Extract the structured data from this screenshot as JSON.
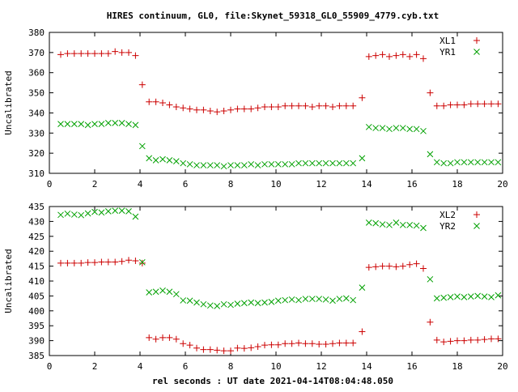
{
  "title": "HIRES continuum, GL0, file:Skynet_59318_GL0_55909_4779.cyb.txt",
  "xlabel": "rel seconds : UT date 2021-04-14T08:04:48.050",
  "chart_data": [
    {
      "type": "scatter",
      "ylabel": "Uncalibrated",
      "xlim": [
        0,
        20
      ],
      "ylim": [
        310,
        380
      ],
      "xticks": [
        "0",
        "2",
        "4",
        "6",
        "8",
        "10",
        "12",
        "14",
        "16",
        "18",
        "20"
      ],
      "yticks": [
        "310",
        "320",
        "330",
        "340",
        "350",
        "360",
        "370",
        "380"
      ],
      "legend_position": "top-right",
      "grid": false,
      "series": [
        {
          "name": "XL1",
          "marker": "+",
          "color": "#cc0000",
          "x": [
            0.5,
            0.8,
            1.1,
            1.4,
            1.7,
            2.0,
            2.3,
            2.6,
            2.9,
            3.2,
            3.5,
            3.8,
            4.1,
            4.4,
            4.7,
            5.0,
            5.3,
            5.6,
            5.9,
            6.2,
            6.5,
            6.8,
            7.1,
            7.4,
            7.7,
            8.0,
            8.3,
            8.6,
            8.9,
            9.2,
            9.5,
            9.8,
            10.1,
            10.4,
            10.7,
            11.0,
            11.3,
            11.6,
            11.9,
            12.2,
            12.5,
            12.8,
            13.1,
            13.4,
            13.8,
            14.1,
            14.4,
            14.7,
            15.0,
            15.3,
            15.6,
            15.9,
            16.2,
            16.5,
            16.8,
            17.1,
            17.4,
            17.7,
            18.0,
            18.3,
            18.6,
            18.9,
            19.2,
            19.5,
            19.8
          ],
          "y": [
            369,
            369.5,
            369.5,
            369.5,
            369.5,
            369.5,
            369.5,
            369.5,
            370.5,
            370,
            370,
            368.5,
            354,
            345.5,
            345.5,
            345,
            344,
            343,
            342.5,
            342,
            341.5,
            341.5,
            341,
            340.5,
            341,
            341.5,
            342,
            342,
            342,
            342.5,
            343,
            343,
            343,
            343.5,
            343.5,
            343.5,
            343.5,
            343,
            343.5,
            343.5,
            343,
            343.5,
            343.5,
            343.5,
            347.5,
            368,
            368.5,
            369,
            368,
            368.5,
            369,
            368,
            369,
            367,
            350,
            343.5,
            343.5,
            344,
            344,
            344,
            344.5,
            344.5,
            344.5,
            344.5,
            344.5
          ]
        },
        {
          "name": "YR1",
          "marker": "x",
          "color": "#00a000",
          "x": [
            0.5,
            0.8,
            1.1,
            1.4,
            1.7,
            2.0,
            2.3,
            2.6,
            2.9,
            3.2,
            3.5,
            3.8,
            4.1,
            4.4,
            4.7,
            5.0,
            5.3,
            5.6,
            5.9,
            6.2,
            6.5,
            6.8,
            7.1,
            7.4,
            7.7,
            8.0,
            8.3,
            8.6,
            8.9,
            9.2,
            9.5,
            9.8,
            10.1,
            10.4,
            10.7,
            11.0,
            11.3,
            11.6,
            11.9,
            12.2,
            12.5,
            12.8,
            13.1,
            13.4,
            13.8,
            14.1,
            14.4,
            14.7,
            15.0,
            15.3,
            15.6,
            15.9,
            16.2,
            16.5,
            16.8,
            17.1,
            17.4,
            17.7,
            18.0,
            18.3,
            18.6,
            18.9,
            19.2,
            19.5,
            19.8
          ],
          "y": [
            334.5,
            334.5,
            334.5,
            334.5,
            334,
            334.5,
            334.5,
            335,
            335,
            335,
            334.5,
            334,
            323.5,
            317.5,
            316.5,
            317,
            316.5,
            316,
            315,
            314.5,
            314,
            314,
            314,
            314,
            313.5,
            314,
            314,
            314,
            314.5,
            314,
            314.5,
            314.5,
            314.5,
            314.5,
            314.5,
            315,
            315,
            315,
            315,
            315,
            315,
            315,
            315,
            315,
            317.5,
            333,
            332.5,
            332.5,
            332,
            332.5,
            332.5,
            332,
            332,
            331,
            319.5,
            315.5,
            315,
            315,
            315.5,
            315.5,
            315.5,
            315.5,
            315.5,
            315.5,
            315.5
          ]
        }
      ]
    },
    {
      "type": "scatter",
      "ylabel": "Uncalibrated",
      "xlim": [
        0,
        20
      ],
      "ylim": [
        385,
        435
      ],
      "xticks": [
        "0",
        "2",
        "4",
        "6",
        "8",
        "10",
        "12",
        "14",
        "16",
        "18",
        "20"
      ],
      "yticks": [
        "385",
        "390",
        "395",
        "400",
        "405",
        "410",
        "415",
        "420",
        "425",
        "430",
        "435"
      ],
      "legend_position": "top-right",
      "grid": false,
      "series": [
        {
          "name": "XL2",
          "marker": "+",
          "color": "#cc0000",
          "x": [
            0.5,
            0.8,
            1.1,
            1.4,
            1.7,
            2.0,
            2.3,
            2.6,
            2.9,
            3.2,
            3.5,
            3.8,
            4.1,
            4.4,
            4.7,
            5.0,
            5.3,
            5.6,
            5.9,
            6.2,
            6.5,
            6.8,
            7.1,
            7.4,
            7.7,
            8.0,
            8.3,
            8.6,
            8.9,
            9.2,
            9.5,
            9.8,
            10.1,
            10.4,
            10.7,
            11.0,
            11.3,
            11.6,
            11.9,
            12.2,
            12.5,
            12.8,
            13.1,
            13.4,
            13.8,
            14.1,
            14.4,
            14.7,
            15.0,
            15.3,
            15.6,
            15.9,
            16.2,
            16.5,
            16.8,
            17.1,
            17.4,
            17.7,
            18.0,
            18.3,
            18.6,
            18.9,
            19.2,
            19.5,
            19.8
          ],
          "y": [
            416,
            416,
            416,
            416,
            416.2,
            416.2,
            416.4,
            416.4,
            416.4,
            416.6,
            417,
            416.8,
            416,
            391,
            390.5,
            391,
            391,
            390.5,
            389,
            388.5,
            387.5,
            387,
            387,
            386.8,
            386.6,
            386.6,
            387.5,
            387.4,
            387.6,
            388,
            388.5,
            388.6,
            388.6,
            389,
            389,
            389.2,
            389,
            389,
            388.8,
            388.8,
            389,
            389.2,
            389.2,
            389.2,
            393,
            414.6,
            414.8,
            415,
            415,
            414.8,
            415,
            415.5,
            415.8,
            414.2,
            396.2,
            390.2,
            389.6,
            389.8,
            390,
            390,
            390.2,
            390.2,
            390.4,
            390.6,
            390.6
          ]
        },
        {
          "name": "YR2",
          "marker": "x",
          "color": "#00a000",
          "x": [
            0.5,
            0.8,
            1.1,
            1.4,
            1.7,
            2.0,
            2.3,
            2.6,
            2.9,
            3.2,
            3.5,
            3.8,
            4.1,
            4.4,
            4.7,
            5.0,
            5.3,
            5.6,
            5.9,
            6.2,
            6.5,
            6.8,
            7.1,
            7.4,
            7.7,
            8.0,
            8.3,
            8.6,
            8.9,
            9.2,
            9.5,
            9.8,
            10.1,
            10.4,
            10.7,
            11.0,
            11.3,
            11.6,
            11.9,
            12.2,
            12.5,
            12.8,
            13.1,
            13.4,
            13.8,
            14.1,
            14.4,
            14.7,
            15.0,
            15.3,
            15.6,
            15.9,
            16.2,
            16.5,
            16.8,
            17.1,
            17.4,
            17.7,
            18.0,
            18.3,
            18.6,
            18.9,
            19.2,
            19.5,
            19.8
          ],
          "y": [
            432.2,
            432.6,
            432.3,
            432.1,
            432.7,
            433.2,
            433,
            433.4,
            433.6,
            433.6,
            433.4,
            431.6,
            416.3,
            406.2,
            406.4,
            406.8,
            406.4,
            405.6,
            403.5,
            403.4,
            402.8,
            402.2,
            401.8,
            401.6,
            402.2,
            402,
            402.4,
            402.6,
            402.8,
            402.6,
            402.8,
            403,
            403.4,
            403.6,
            403.8,
            403.6,
            404,
            404,
            404,
            403.8,
            403.4,
            404,
            404.2,
            403.6,
            407.8,
            429.6,
            429.4,
            429,
            428.8,
            429.6,
            428.8,
            428.8,
            428.6,
            427.8,
            410.6,
            404.2,
            404.4,
            404.6,
            404.8,
            404.6,
            404.8,
            405,
            404.8,
            404.6,
            405.2
          ]
        }
      ]
    }
  ]
}
